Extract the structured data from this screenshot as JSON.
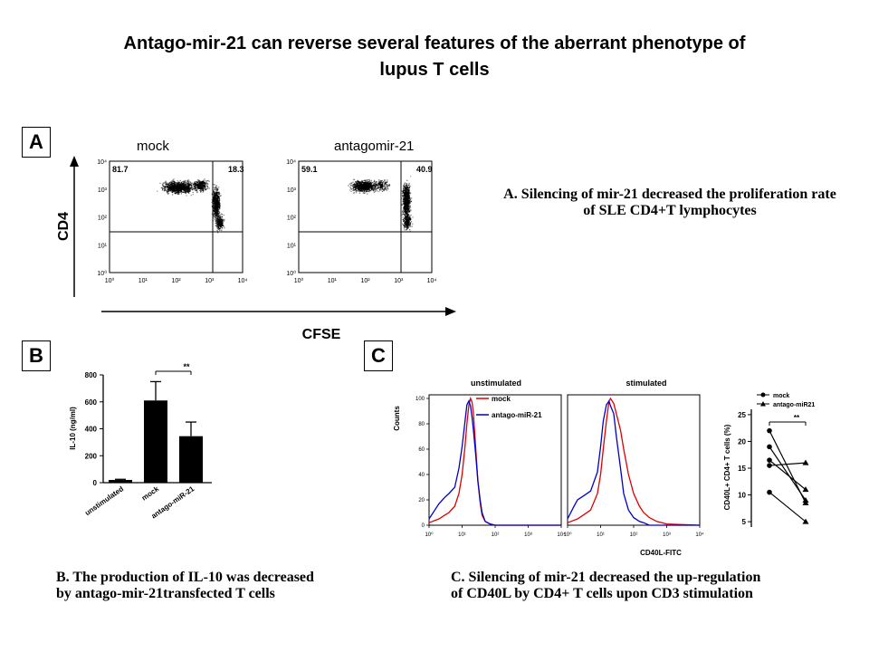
{
  "title_line1": "Antago-mir-21 can reverse several features of the aberrant phenotype of",
  "title_line2": "lupus T cells",
  "panel_a": {
    "label": "A",
    "ylabel": "CD4",
    "xlabel": "CFSE",
    "mock_label": "mock",
    "antagomir_label": "antagomir-21",
    "mock_left_pct": "81.7",
    "mock_right_pct": "18.3",
    "antagomir_left_pct": "59.1",
    "antagomir_right_pct": "40.9",
    "caption_line1": "A. Silencing of mir-21 decreased the proliferation rate",
    "caption_line2": "of SLE CD4+T lymphocytes"
  },
  "panel_b": {
    "label": "B",
    "caption_line1": "B. The production of IL-10 was decreased",
    "caption_line2": "by antago-mir-21transfected T cells"
  },
  "panel_c": {
    "label": "C",
    "title_unstim": "unstimulated",
    "title_stim": "stimulated",
    "counts_label": "Counts",
    "xlabel": "CD40L-FITC",
    "legend_mock": "mock",
    "legend_antago": "antago-miR-21",
    "caption_line1": "C. Silencing of mir-21 decreased the up-regulation",
    "caption_line2": "of CD40L by  CD4+ T cells upon CD3 stimulation"
  },
  "chart_data": [
    {
      "type": "scatter",
      "title": "mock",
      "xlabel": "CFSE",
      "ylabel": "CD4",
      "x_scale": "log",
      "y_scale": "log",
      "xlim": [
        1,
        10000
      ],
      "ylim": [
        1,
        10000
      ],
      "x_ticks": [
        "10⁰",
        "10¹",
        "10²",
        "10³",
        "10⁴"
      ],
      "y_ticks": [
        "10⁰",
        "10¹",
        "10²",
        "10³",
        "10⁴"
      ],
      "quadrant_percentages": {
        "upper_left": 81.7,
        "upper_right": 18.3
      }
    },
    {
      "type": "scatter",
      "title": "antagomir-21",
      "xlabel": "CFSE",
      "ylabel": "CD4",
      "x_scale": "log",
      "y_scale": "log",
      "xlim": [
        1,
        10000
      ],
      "ylim": [
        1,
        10000
      ],
      "x_ticks": [
        "10⁰",
        "10¹",
        "10²",
        "10³",
        "10⁴"
      ],
      "y_ticks": [
        "10⁰",
        "10¹",
        "10²",
        "10³",
        "10⁴"
      ],
      "quadrant_percentages": {
        "upper_left": 59.1,
        "upper_right": 40.9
      }
    },
    {
      "type": "bar",
      "categories": [
        "unstimulated",
        "mock",
        "antago-miR-21"
      ],
      "values": [
        20,
        610,
        345
      ],
      "errors": [
        5,
        140,
        105
      ],
      "ylabel": "IL-10 (ng/ml)",
      "ylim": [
        0,
        800
      ],
      "y_ticks": [
        0,
        200,
        400,
        600,
        800
      ],
      "significance": {
        "between": [
          "mock",
          "antago-miR-21"
        ],
        "label": "**"
      }
    },
    {
      "type": "line",
      "title": "unstimulated",
      "xlabel": "CD40L-FITC",
      "ylabel": "Counts",
      "x_scale": "log",
      "xlim": [
        1,
        10000
      ],
      "ylim": [
        0,
        100
      ],
      "x_ticks": [
        "10⁰",
        "10¹",
        "10²",
        "10³",
        "10⁴"
      ],
      "y_ticks": [
        0,
        20,
        40,
        60,
        80,
        100
      ],
      "series": [
        {
          "name": "mock",
          "color": "#dd0000",
          "x": [
            1,
            2,
            3,
            4,
            6,
            8,
            10,
            12,
            14,
            16,
            18,
            20,
            22,
            26,
            30,
            35,
            40,
            50,
            70,
            100,
            10000
          ],
          "y": [
            2,
            5,
            8,
            10,
            15,
            25,
            40,
            60,
            80,
            95,
            100,
            97,
            88,
            60,
            35,
            18,
            8,
            3,
            1,
            0,
            0
          ]
        },
        {
          "name": "antago-miR-21",
          "color": "#0000cc",
          "x": [
            1,
            1.5,
            2,
            3,
            4,
            6,
            8,
            10,
            12,
            14,
            16,
            18,
            20,
            22,
            26,
            30,
            35,
            40,
            50,
            70,
            100,
            10000
          ],
          "y": [
            5,
            12,
            17,
            22,
            25,
            30,
            45,
            62,
            80,
            95,
            98,
            94,
            85,
            75,
            55,
            35,
            20,
            10,
            3,
            1,
            0,
            0
          ]
        }
      ]
    },
    {
      "type": "line",
      "title": "stimulated",
      "xlabel": "CD40L-FITC",
      "ylabel": "Counts",
      "x_scale": "log",
      "xlim": [
        1,
        10000
      ],
      "ylim": [
        0,
        100
      ],
      "x_ticks": [
        "10⁰",
        "10¹",
        "10²",
        "10³",
        "10⁴"
      ],
      "series": [
        {
          "name": "mock",
          "color": "#dd0000",
          "x": [
            1,
            2,
            3,
            5,
            8,
            10,
            12,
            15,
            18,
            20,
            25,
            30,
            40,
            50,
            70,
            100,
            150,
            200,
            300,
            500,
            1000,
            10000
          ],
          "y": [
            2,
            5,
            8,
            12,
            25,
            40,
            60,
            82,
            98,
            100,
            96,
            88,
            75,
            60,
            40,
            25,
            15,
            10,
            6,
            3,
            1,
            0
          ]
        },
        {
          "name": "antago-miR-21",
          "color": "#0000cc",
          "x": [
            1,
            1.5,
            2,
            3,
            5,
            8,
            10,
            12,
            15,
            18,
            20,
            25,
            30,
            40,
            50,
            70,
            100,
            150,
            200,
            300,
            10000
          ],
          "y": [
            5,
            14,
            20,
            23,
            27,
            42,
            62,
            82,
            95,
            98,
            94,
            88,
            70,
            45,
            25,
            12,
            6,
            3,
            2,
            0,
            0
          ]
        }
      ]
    },
    {
      "type": "line",
      "ylabel": "CD40L+ CD4+ T cells (%)",
      "ylim": [
        4,
        26
      ],
      "y_ticks": [
        5,
        10,
        15,
        20,
        25
      ],
      "categories": [
        "mock",
        "antago-miR21"
      ],
      "series": [
        {
          "values": [
            22,
            8.5
          ]
        },
        {
          "values": [
            19,
            9
          ]
        },
        {
          "values": [
            16.5,
            11
          ]
        },
        {
          "values": [
            15.5,
            16
          ]
        },
        {
          "values": [
            10.5,
            5
          ]
        }
      ],
      "significance": {
        "label": "**"
      }
    }
  ]
}
